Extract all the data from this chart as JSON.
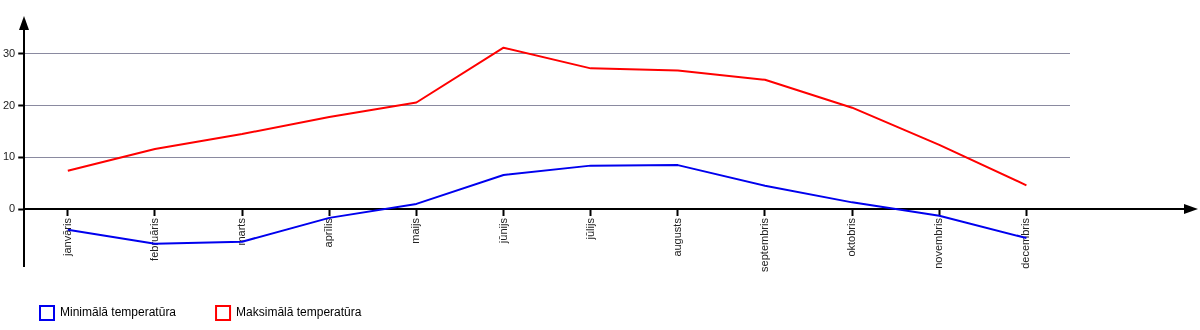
{
  "chart_data": {
    "type": "line",
    "categories": [
      "janvāris",
      "februāris",
      "marts",
      "aprīlis",
      "maijs",
      "jūnijs",
      "jūlijs",
      "augusts",
      "septembris",
      "oktobris",
      "novembris",
      "decembris"
    ],
    "series": [
      {
        "name": "Minimālā temperatūra",
        "color": "#0000ee",
        "values": [
          -4.0,
          -6.7,
          -6.3,
          -1.7,
          1.0,
          6.6,
          8.4,
          8.5,
          4.5,
          1.3,
          -1.3,
          -5.6
        ]
      },
      {
        "name": "Maksimālā temperatūra",
        "color": "#ff0000",
        "values": [
          7.4,
          11.6,
          14.5,
          17.8,
          20.6,
          31.2,
          27.2,
          26.8,
          25.0,
          19.6,
          12.4,
          4.6
        ]
      }
    ],
    "ylim": [
      -11,
      35
    ],
    "yticks": [
      0,
      10,
      20,
      30
    ],
    "grid": "y",
    "legend": "bottom left",
    "marker": "none",
    "line_style": "solid"
  }
}
